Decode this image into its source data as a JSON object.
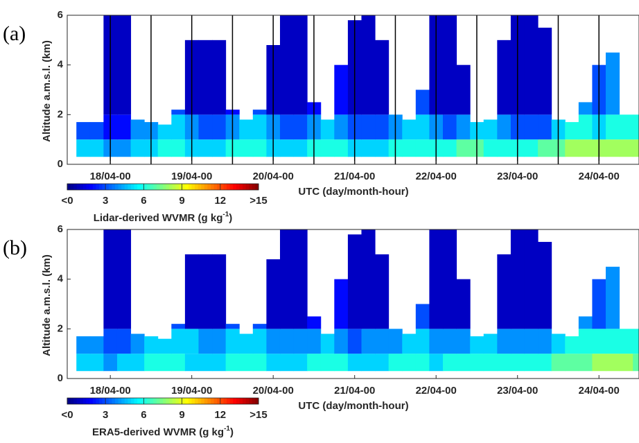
{
  "chart_data": [
    {
      "type": "heatmap",
      "panel_label": "(a)",
      "y_label": "Altitude a.m.s.l. (km)",
      "x_label": "UTC (day/month-hour)",
      "colorbar_label": "Lidar-derived WVMR (g kg",
      "colorbar_label_sup": "-1",
      "colorbar_label_end": ")",
      "colormap": "jet",
      "clim": [
        0,
        15
      ],
      "cticks": [
        {
          "value": 0,
          "label": "<0"
        },
        3,
        6,
        9,
        12,
        {
          "value": 15,
          "label": ">15"
        }
      ],
      "xlim": [
        11.3,
        179.8
      ],
      "xticks": [
        {
          "value": 24,
          "label": "18/04-00"
        },
        {
          "value": 48,
          "label": "19/04-00"
        },
        {
          "value": 72,
          "label": "20/04-00"
        },
        {
          "value": 96,
          "label": "21/04-00"
        },
        {
          "value": 120,
          "label": "22/04-00"
        },
        {
          "value": 144,
          "label": "23/04-00"
        },
        {
          "value": 168,
          "label": "24/04-00"
        }
      ],
      "ylim": [
        0,
        6
      ],
      "yticks": [
        0,
        2,
        4,
        6
      ],
      "vertical_lines": [
        24,
        36,
        48,
        60,
        72,
        84,
        96,
        108,
        120,
        132,
        144,
        156,
        168
      ],
      "base_altitude": 0.3,
      "layer_tops": [
        1,
        2
      ],
      "x": [
        14,
        18,
        22,
        26,
        30,
        34,
        38,
        42,
        46,
        50,
        54,
        58,
        62,
        66,
        70,
        74,
        78,
        82,
        86,
        90,
        94,
        98,
        102,
        106,
        110,
        114,
        118,
        122,
        126,
        130,
        134,
        138,
        142,
        146,
        150,
        154,
        158,
        162,
        166,
        170,
        174,
        178
      ],
      "tops": [
        1.7,
        1.7,
        6,
        6,
        1.8,
        1.7,
        1.6,
        2.2,
        5,
        5,
        5,
        2.2,
        1.8,
        2.2,
        4.8,
        6,
        6,
        2.5,
        1.8,
        4,
        5.8,
        6,
        5,
        2,
        1.8,
        3,
        6,
        6,
        4,
        1.7,
        1.8,
        5,
        6,
        6,
        5.5,
        1.8,
        1.7,
        2.5,
        4,
        4.5,
        2,
        2
      ],
      "values_low": [
        5,
        5,
        4,
        4,
        5,
        5,
        6,
        6,
        5,
        5,
        5,
        6,
        6,
        6,
        5,
        5,
        5,
        6,
        6,
        6,
        5,
        5,
        5,
        6,
        6,
        6,
        6,
        6,
        7,
        7,
        6,
        6,
        6,
        6,
        7,
        7,
        8,
        8,
        8,
        8,
        8,
        8
      ],
      "values_mid": [
        3,
        3,
        2,
        2,
        4,
        4,
        5,
        5,
        4,
        3,
        3,
        4,
        5,
        5,
        4,
        3,
        3,
        4,
        5,
        4,
        3,
        3,
        3,
        4,
        5,
        5,
        4,
        3,
        4,
        5,
        5,
        4,
        3,
        3,
        3,
        5,
        6,
        6,
        5,
        6,
        6,
        6
      ],
      "values_upper": [
        2,
        2,
        1,
        1,
        2,
        2,
        3,
        3,
        1,
        1,
        1,
        2,
        3,
        3,
        1,
        1,
        1,
        2,
        3,
        2,
        1,
        1,
        1,
        2,
        3,
        3,
        1,
        1,
        1,
        3,
        3,
        1,
        1,
        1,
        1,
        3,
        4,
        4,
        3,
        4,
        4,
        4
      ]
    },
    {
      "type": "heatmap",
      "panel_label": "(b)",
      "y_label": "Altitude a.m.s.l. (km)",
      "x_label": "UTC (day/month-hour)",
      "colorbar_label": "ERA5-derived WVMR (g kg",
      "colorbar_label_sup": "-1",
      "colorbar_label_end": ")",
      "colormap": "jet",
      "clim": [
        0,
        15
      ],
      "cticks": [
        {
          "value": 0,
          "label": "<0"
        },
        3,
        6,
        9,
        12,
        {
          "value": 15,
          "label": ">15"
        }
      ],
      "xlim": [
        11.3,
        179.8
      ],
      "xticks": [
        {
          "value": 24,
          "label": "18/04-00"
        },
        {
          "value": 48,
          "label": "19/04-00"
        },
        {
          "value": 72,
          "label": "20/04-00"
        },
        {
          "value": 96,
          "label": "21/04-00"
        },
        {
          "value": 120,
          "label": "22/04-00"
        },
        {
          "value": 144,
          "label": "23/04-00"
        },
        {
          "value": 168,
          "label": "24/04-00"
        }
      ],
      "ylim": [
        0,
        6
      ],
      "yticks": [
        0,
        2,
        4,
        6
      ],
      "base_altitude": 0.3,
      "layer_tops": [
        1,
        2
      ],
      "x": [
        14,
        18,
        22,
        26,
        30,
        34,
        38,
        42,
        46,
        50,
        54,
        58,
        62,
        66,
        70,
        74,
        78,
        82,
        86,
        90,
        94,
        98,
        102,
        106,
        110,
        114,
        118,
        122,
        126,
        130,
        134,
        138,
        142,
        146,
        150,
        154,
        158,
        162,
        166,
        170,
        174,
        178
      ],
      "tops": [
        1.7,
        1.7,
        6,
        6,
        1.8,
        1.7,
        1.6,
        2.2,
        5,
        5,
        5,
        2.2,
        1.8,
        2.2,
        4.8,
        6,
        6,
        2.5,
        1.8,
        4,
        5.8,
        6,
        5,
        2,
        1.8,
        3,
        6,
        6,
        4,
        1.7,
        1.8,
        5,
        6,
        6,
        5.5,
        1.8,
        1.7,
        2.5,
        4,
        4.5,
        2,
        2
      ],
      "values_low": [
        5,
        5,
        4,
        5,
        5,
        6,
        6,
        6,
        5,
        5,
        5,
        6,
        6,
        6,
        5,
        5,
        5,
        6,
        6,
        6,
        5,
        5,
        5,
        6,
        6,
        6,
        5,
        6,
        6,
        6,
        6,
        6,
        6,
        6,
        6,
        7,
        7,
        7,
        8,
        8,
        8,
        7
      ],
      "values_mid": [
        4,
        4,
        3,
        3,
        4,
        5,
        5,
        5,
        5,
        4,
        4,
        5,
        5,
        5,
        4,
        4,
        4,
        4,
        5,
        4,
        3,
        4,
        4,
        4,
        5,
        5,
        4,
        4,
        4,
        5,
        5,
        4,
        4,
        4,
        4,
        5,
        6,
        6,
        6,
        6,
        6,
        6
      ],
      "values_upper": [
        2,
        2,
        1,
        1,
        2,
        3,
        3,
        3,
        1,
        1,
        1,
        3,
        3,
        3,
        1,
        1,
        1,
        2,
        3,
        2,
        1,
        1,
        1,
        2,
        3,
        3,
        1,
        1,
        1,
        3,
        3,
        1,
        1,
        1,
        1,
        3,
        4,
        4,
        3,
        4,
        4,
        4
      ]
    }
  ]
}
